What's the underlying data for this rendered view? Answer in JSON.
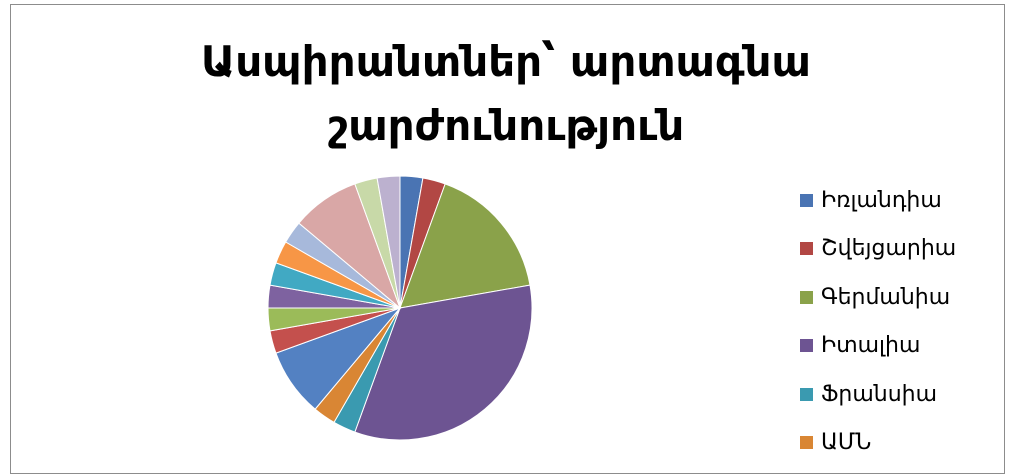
{
  "chart_data": {
    "type": "pie",
    "title": [
      "Ասպիրանտներ՝ արտագնա",
      "շարժունություն"
    ],
    "start_angle_deg": 0,
    "direction": "clockwise",
    "slices": [
      {
        "name": "Իռլանդիա",
        "value": 1,
        "color": "#4a74b3"
      },
      {
        "name": "Շվեյցարիա",
        "value": 1,
        "color": "#b24744"
      },
      {
        "name": "Գերմանիա",
        "value": 6,
        "color": "#8aa24a"
      },
      {
        "name": "Իտալիա",
        "value": 12,
        "color": "#6d5492"
      },
      {
        "name": "Ֆրանսիա",
        "value": 1,
        "color": "#3a9ab0"
      },
      {
        "name": "ԱՄՆ",
        "value": 1,
        "color": "#d98634"
      },
      {
        "name": "",
        "value": 3,
        "color": "#5381c2"
      },
      {
        "name": "",
        "value": 1,
        "color": "#c4504d"
      },
      {
        "name": "",
        "value": 1,
        "color": "#9bbb59"
      },
      {
        "name": "",
        "value": 1,
        "color": "#7e62a0"
      },
      {
        "name": "",
        "value": 1,
        "color": "#41a9c3"
      },
      {
        "name": "",
        "value": 1,
        "color": "#f79646"
      },
      {
        "name": "",
        "value": 1,
        "color": "#a7b9db"
      },
      {
        "name": "",
        "value": 3,
        "color": "#d9a7a6"
      },
      {
        "name": "",
        "value": 1,
        "color": "#c8d9a8"
      },
      {
        "name": "",
        "value": 1,
        "color": "#bcb1cf"
      }
    ],
    "legend_position": "right"
  }
}
